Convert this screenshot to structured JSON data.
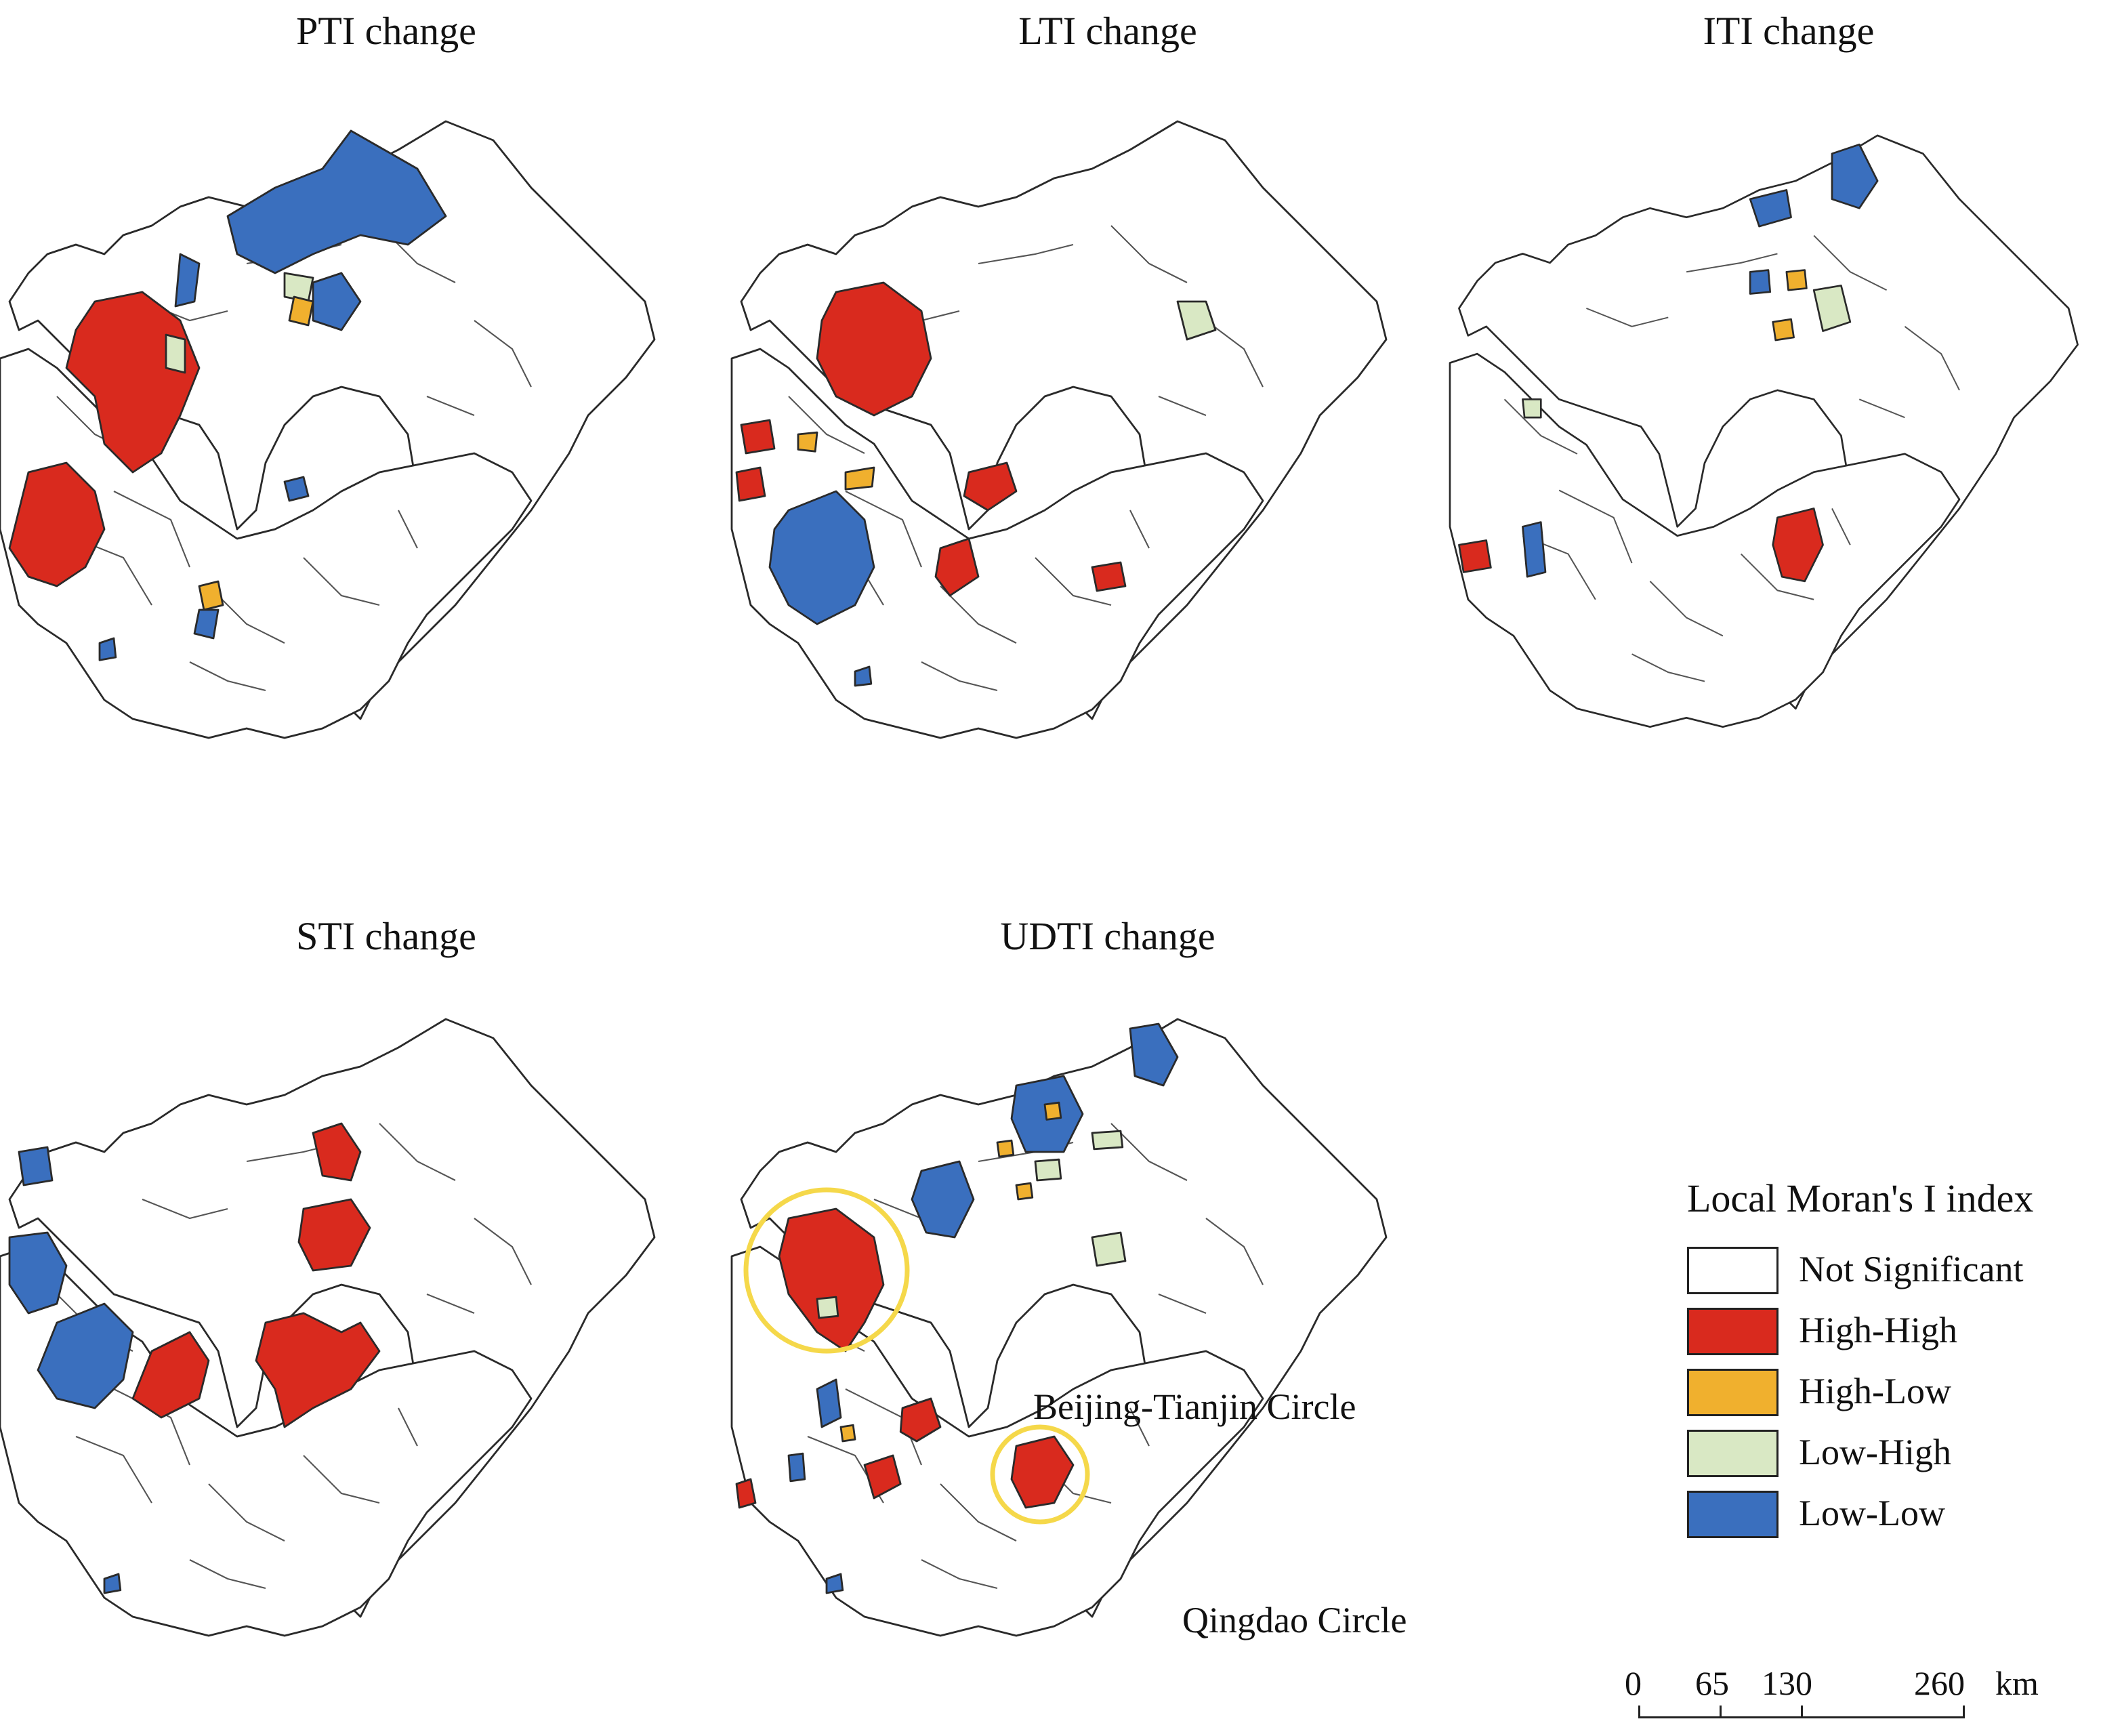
{
  "panels": {
    "pti": {
      "title": "PTI change"
    },
    "lti": {
      "title": "LTI change"
    },
    "iti": {
      "title": "ITI change"
    },
    "sti": {
      "title": "STI change"
    },
    "udti": {
      "title": "UDTI change"
    }
  },
  "annotations": {
    "beijing": "Beijing-Tianjin Circle",
    "qingdao": "Qingdao Circle"
  },
  "legend": {
    "title": "Local Moran's I index",
    "items": [
      {
        "label": "Not Significant",
        "color": "#ffffff"
      },
      {
        "label": "High-High",
        "color": "#d92a1e"
      },
      {
        "label": "High-Low",
        "color": "#f0b02e"
      },
      {
        "label": "Low-High",
        "color": "#d9e8c4"
      },
      {
        "label": "Low-Low",
        "color": "#3a6fbe"
      }
    ]
  },
  "scalebar": {
    "ticks": [
      "0",
      "65",
      "130",
      "260"
    ],
    "unit": "km"
  }
}
